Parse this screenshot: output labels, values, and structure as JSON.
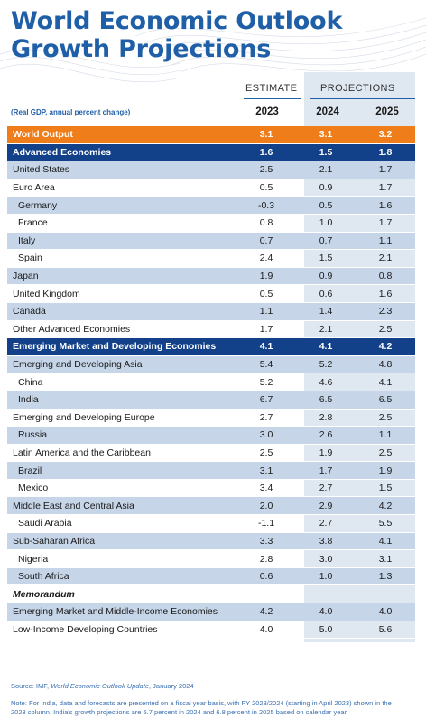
{
  "title_lines": [
    "World Economic Outlook",
    "Growth Projections"
  ],
  "header": {
    "estimate_label": "ESTIMATE",
    "projections_label": "PROJECTIONS",
    "subtitle": "(Real GDP, annual percent change)",
    "years": [
      "2023",
      "2024",
      "2025"
    ]
  },
  "rows": [
    {
      "label": "World Output",
      "v": [
        "3.1",
        "3.1",
        "3.2"
      ],
      "style": "orange"
    },
    {
      "label": "Advanced Economies",
      "v": [
        "1.6",
        "1.5",
        "1.8"
      ],
      "style": "navy"
    },
    {
      "label": "United States",
      "v": [
        "2.5",
        "2.1",
        "1.7"
      ],
      "style": "band"
    },
    {
      "label": "Euro Area",
      "v": [
        "0.5",
        "0.9",
        "1.7"
      ],
      "style": "plain"
    },
    {
      "label": "Germany",
      "v": [
        "-0.3",
        "0.5",
        "1.6"
      ],
      "style": "band-indent"
    },
    {
      "label": "France",
      "v": [
        "0.8",
        "1.0",
        "1.7"
      ],
      "style": "plain-indent"
    },
    {
      "label": "Italy",
      "v": [
        "0.7",
        "0.7",
        "1.1"
      ],
      "style": "band-indent"
    },
    {
      "label": "Spain",
      "v": [
        "2.4",
        "1.5",
        "2.1"
      ],
      "style": "plain-indent"
    },
    {
      "label": "Japan",
      "v": [
        "1.9",
        "0.9",
        "0.8"
      ],
      "style": "band"
    },
    {
      "label": "United Kingdom",
      "v": [
        "0.5",
        "0.6",
        "1.6"
      ],
      "style": "plain"
    },
    {
      "label": "Canada",
      "v": [
        "1.1",
        "1.4",
        "2.3"
      ],
      "style": "band"
    },
    {
      "label": "Other Advanced Economies",
      "v": [
        "1.7",
        "2.1",
        "2.5"
      ],
      "style": "plain"
    },
    {
      "label": "Emerging Market and Developing Economies",
      "v": [
        "4.1",
        "4.1",
        "4.2"
      ],
      "style": "navy"
    },
    {
      "label": "Emerging and Developing Asia",
      "v": [
        "5.4",
        "5.2",
        "4.8"
      ],
      "style": "band"
    },
    {
      "label": "China",
      "v": [
        "5.2",
        "4.6",
        "4.1"
      ],
      "style": "plain-indent"
    },
    {
      "label": "India",
      "v": [
        "6.7",
        "6.5",
        "6.5"
      ],
      "style": "band-indent"
    },
    {
      "label": "Emerging and Developing Europe",
      "v": [
        "2.7",
        "2.8",
        "2.5"
      ],
      "style": "plain"
    },
    {
      "label": "Russia",
      "v": [
        "3.0",
        "2.6",
        "1.1"
      ],
      "style": "band-indent"
    },
    {
      "label": "Latin America and the Caribbean",
      "v": [
        "2.5",
        "1.9",
        "2.5"
      ],
      "style": "plain"
    },
    {
      "label": "Brazil",
      "v": [
        "3.1",
        "1.7",
        "1.9"
      ],
      "style": "band-indent"
    },
    {
      "label": "Mexico",
      "v": [
        "3.4",
        "2.7",
        "1.5"
      ],
      "style": "plain-indent"
    },
    {
      "label": "Middle East and Central Asia",
      "v": [
        "2.0",
        "2.9",
        "4.2"
      ],
      "style": "band"
    },
    {
      "label": "Saudi Arabia",
      "v": [
        "-1.1",
        "2.7",
        "5.5"
      ],
      "style": "plain-indent"
    },
    {
      "label": "Sub-Saharan Africa",
      "v": [
        "3.3",
        "3.8",
        "4.1"
      ],
      "style": "band"
    },
    {
      "label": "Nigeria",
      "v": [
        "2.8",
        "3.0",
        "3.1"
      ],
      "style": "plain-indent"
    },
    {
      "label": "South Africa",
      "v": [
        "0.6",
        "1.0",
        "1.3"
      ],
      "style": "band-indent"
    },
    {
      "label": "Memorandum",
      "v": [
        "",
        "",
        ""
      ],
      "style": "memo"
    },
    {
      "label": "Emerging Market and Middle-Income Economies",
      "v": [
        "4.2",
        "4.0",
        "4.0"
      ],
      "style": "band"
    },
    {
      "label": "Low-Income Developing Countries",
      "v": [
        "4.0",
        "5.0",
        "5.6"
      ],
      "style": "plain"
    }
  ],
  "source": {
    "prefix": "Source: IMF, ",
    "publication": "World Economic Outlook Update",
    "suffix": ", January 2024"
  },
  "note": "Note: For India, data and forecasts are presented on a fiscal year basis, with FY 2023/2024 (starting in April 2023) shown in the 2023 column. India's growth projections are 5.7 percent in 2024 and 6.8 percent in 2025 based on calendar year.",
  "colors": {
    "brand_blue": "#1f5fa8",
    "navy": "#12418a",
    "orange": "#ef7d1a",
    "band": "#c6d5e8",
    "proj_shade": "#dfe7f1"
  }
}
